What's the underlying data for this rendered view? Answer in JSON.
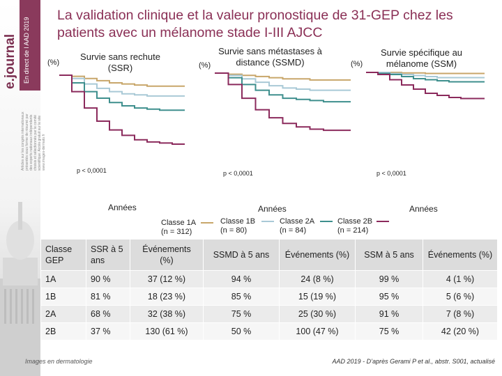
{
  "sidebar": {
    "logo": "e.journal",
    "subtitle": "En direct de l AAD 2019",
    "fine_print": [
      "Articles sur les congrès internationaux",
      "présentés sous forme de résumé par",
      "des experts nationaux indépendants",
      "choisis et sélectionnés par le comité",
      "scientifique. Accès gratuit sur le site",
      "www.images-dermato.fr"
    ]
  },
  "title": "La validation clinique et la valeur pronostique de 31-GEP chez les patients avec un mélanome stade I-III AJCC",
  "colors": {
    "class_1a": "#c8a66a",
    "class_1b": "#a9c9d6",
    "class_2a": "#3e8f8d",
    "class_2b": "#8b2a5c",
    "title": "#8a2f55"
  },
  "chart_data": [
    {
      "type": "line",
      "title": "Survie sans rechute (SSR)",
      "ylabel": "(%)",
      "xlabel": "Années",
      "annotation": "p < 0,0001",
      "ylim": [
        0,
        100
      ],
      "xlim": [
        0,
        5
      ],
      "series": [
        {
          "name": "Classe 1A",
          "x": [
            0,
            0.5,
            1,
            1.5,
            2,
            2.5,
            3,
            3.5,
            4,
            4.5,
            5
          ],
          "values": [
            100,
            99,
            97,
            95,
            93,
            92,
            91,
            90,
            90,
            90,
            90
          ]
        },
        {
          "name": "Classe 1B",
          "x": [
            0,
            0.5,
            1,
            1.5,
            2,
            2.5,
            3,
            3.5,
            4,
            4.5,
            5
          ],
          "values": [
            100,
            97,
            92,
            88,
            85,
            83,
            82,
            81,
            81,
            81,
            81
          ]
        },
        {
          "name": "Classe 2A",
          "x": [
            0,
            0.5,
            1,
            1.5,
            2,
            2.5,
            3,
            3.5,
            4,
            4.5,
            5
          ],
          "values": [
            100,
            93,
            85,
            79,
            75,
            72,
            70,
            69,
            68,
            68,
            68
          ]
        },
        {
          "name": "Classe 2B",
          "x": [
            0,
            0.5,
            1,
            1.5,
            2,
            2.5,
            3,
            3.5,
            4,
            4.5,
            5
          ],
          "values": [
            100,
            85,
            70,
            58,
            50,
            45,
            41,
            39,
            38,
            37,
            37
          ]
        }
      ]
    },
    {
      "type": "line",
      "title": "Survie sans métastases à distance (SSMD)",
      "ylabel": "(%)",
      "xlabel": "Années",
      "annotation": "p < 0,0001",
      "ylim": [
        0,
        100
      ],
      "xlim": [
        0,
        5
      ],
      "series": [
        {
          "name": "Classe 1A",
          "x": [
            0,
            0.5,
            1,
            1.5,
            2,
            2.5,
            3,
            3.5,
            4,
            4.5,
            5
          ],
          "values": [
            100,
            99,
            98,
            97,
            96,
            95,
            95,
            94,
            94,
            94,
            94
          ]
        },
        {
          "name": "Classe 1B",
          "x": [
            0,
            0.5,
            1,
            1.5,
            2,
            2.5,
            3,
            3.5,
            4,
            4.5,
            5
          ],
          "values": [
            100,
            98,
            95,
            92,
            89,
            87,
            86,
            85,
            85,
            85,
            85
          ]
        },
        {
          "name": "Classe 2A",
          "x": [
            0,
            0.5,
            1,
            1.5,
            2,
            2.5,
            3,
            3.5,
            4,
            4.5,
            5
          ],
          "values": [
            100,
            96,
            90,
            85,
            81,
            78,
            77,
            76,
            75,
            75,
            75
          ]
        },
        {
          "name": "Classe 2B",
          "x": [
            0,
            0.5,
            1,
            1.5,
            2,
            2.5,
            3,
            3.5,
            4,
            4.5,
            5
          ],
          "values": [
            100,
            90,
            78,
            68,
            61,
            56,
            53,
            51,
            50,
            50,
            50
          ]
        }
      ]
    },
    {
      "type": "line",
      "title": "Survie spécifique au mélanome (SSM)",
      "ylabel": "(%)",
      "xlabel": "Années",
      "annotation": "p < 0,0001",
      "ylim": [
        0,
        100
      ],
      "xlim": [
        0,
        5
      ],
      "series": [
        {
          "name": "Classe 1A",
          "x": [
            0,
            0.5,
            1,
            1.5,
            2,
            2.5,
            3,
            3.5,
            4,
            4.5,
            5
          ],
          "values": [
            100,
            100,
            100,
            99.5,
            99.5,
            99,
            99,
            99,
            99,
            99,
            99
          ]
        },
        {
          "name": "Classe 1B",
          "x": [
            0,
            0.5,
            1,
            1.5,
            2,
            2.5,
            3,
            3.5,
            4,
            4.5,
            5
          ],
          "values": [
            100,
            100,
            99,
            98,
            97,
            96,
            95,
            95,
            95,
            95,
            95
          ]
        },
        {
          "name": "Classe 2A",
          "x": [
            0,
            0.5,
            1,
            1.5,
            2,
            2.5,
            3,
            3.5,
            4,
            4.5,
            5
          ],
          "values": [
            100,
            99,
            98,
            96,
            94,
            93,
            92,
            91,
            91,
            91,
            91
          ]
        },
        {
          "name": "Classe 2B",
          "x": [
            0,
            0.5,
            1,
            1.5,
            2,
            2.5,
            3,
            3.5,
            4,
            4.5,
            5
          ],
          "values": [
            100,
            98,
            93,
            88,
            84,
            80,
            78,
            76,
            75,
            75,
            75
          ]
        }
      ]
    }
  ],
  "legend": [
    {
      "label": "Classe 1A\n(n = 312)",
      "color_key": "class_1a"
    },
    {
      "label": "Classe 1B\n(n = 80)",
      "color_key": "class_1b"
    },
    {
      "label": "Classe 2A\n(n = 84)",
      "color_key": "class_2a"
    },
    {
      "label": "Classe 2B\n(n = 214)",
      "color_key": "class_2b"
    }
  ],
  "table": {
    "headers": [
      "Classe GEP",
      "SSR à 5 ans",
      "Événements (%)",
      "SSMD à 5 ans",
      "Événements (%)",
      "SSM à 5 ans",
      "Événements (%)"
    ],
    "rows": [
      [
        "1A",
        "90 %",
        "37 (12 %)",
        "94 %",
        "24 (8 %)",
        "99 %",
        "4 (1 %)"
      ],
      [
        "1B",
        "81 %",
        "18 (23 %)",
        "85 %",
        "15 (19 %)",
        "95 %",
        "5 (6 %)"
      ],
      [
        "2A",
        "68 %",
        "32 (38 %)",
        "75 %",
        "25 (30 %)",
        "91 %",
        "7 (8 %)"
      ],
      [
        "2B",
        "37 %",
        "130 (61 %)",
        "50 %",
        "100 (47 %)",
        "75 %",
        "42 (20 %)"
      ]
    ]
  },
  "footer": {
    "left": "Images en dermatologie",
    "right": "AAD 2019 - D’après Gerami P et al., abstr. S001, actualisé"
  }
}
